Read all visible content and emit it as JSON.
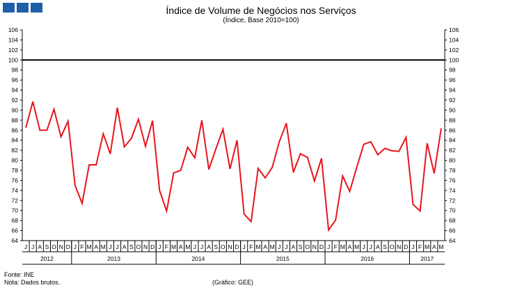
{
  "header": {
    "title": "Índice de Volume de Negócios nos Serviços",
    "subtitle": "(Índice, Base 2010=100)"
  },
  "footer": {
    "source": "Fonte: INE",
    "note": "Nota: Dados brutos.",
    "credit": "(Gráfico: GEE)"
  },
  "colors": {
    "series": "#e8141b",
    "reference": "#000000",
    "logo": "#1f5fa8"
  },
  "chart_data": {
    "type": "line",
    "title": "Índice de Volume de Negócios nos Serviços",
    "subtitle": "(Índice, Base 2010=100)",
    "ylim": [
      64,
      106
    ],
    "ytick_step": 2,
    "right_axis": true,
    "reference_line": 100,
    "month_labels": [
      "J",
      "J",
      "A",
      "S",
      "O",
      "N",
      "D",
      "J",
      "F",
      "M",
      "A",
      "M",
      "J",
      "J",
      "A",
      "S",
      "O",
      "N",
      "D",
      "J",
      "F",
      "M",
      "A",
      "M",
      "J",
      "J",
      "A",
      "S",
      "O",
      "N",
      "D",
      "J",
      "F",
      "M",
      "A",
      "M",
      "J",
      "J",
      "A",
      "S",
      "O",
      "N",
      "D",
      "J",
      "F",
      "M",
      "A",
      "M",
      "J",
      "J",
      "A",
      "S",
      "O",
      "N",
      "D",
      "J",
      "F",
      "M",
      "A",
      "M"
    ],
    "year_groups": [
      {
        "label": "2012",
        "months": 7
      },
      {
        "label": "2013",
        "months": 12
      },
      {
        "label": "2014",
        "months": 12
      },
      {
        "label": "2015",
        "months": 12
      },
      {
        "label": "2016",
        "months": 12
      },
      {
        "label": "2017",
        "months": 5
      }
    ],
    "x": [
      "2012-06",
      "2012-07",
      "2012-08",
      "2012-09",
      "2012-10",
      "2012-11",
      "2012-12",
      "2013-01",
      "2013-02",
      "2013-03",
      "2013-04",
      "2013-05",
      "2013-06",
      "2013-07",
      "2013-08",
      "2013-09",
      "2013-10",
      "2013-11",
      "2013-12",
      "2014-01",
      "2014-02",
      "2014-03",
      "2014-04",
      "2014-05",
      "2014-06",
      "2014-07",
      "2014-08",
      "2014-09",
      "2014-10",
      "2014-11",
      "2014-12",
      "2015-01",
      "2015-02",
      "2015-03",
      "2015-04",
      "2015-05",
      "2015-06",
      "2015-07",
      "2015-08",
      "2015-09",
      "2015-10",
      "2015-11",
      "2015-12",
      "2016-01",
      "2016-02",
      "2016-03",
      "2016-04",
      "2016-05",
      "2016-06",
      "2016-07",
      "2016-08",
      "2016-09",
      "2016-10",
      "2016-11",
      "2016-12",
      "2017-01",
      "2017-02",
      "2017-03",
      "2017-04",
      "2017-05"
    ],
    "series": [
      {
        "values": [
          86.5,
          91.7,
          86.0,
          86.0,
          90.2,
          84.7,
          87.8,
          75.0,
          71.4,
          79.1,
          79.1,
          85.3,
          81.3,
          90.5,
          82.7,
          84.4,
          88.2,
          82.8,
          87.9,
          74.0,
          69.9,
          77.5,
          78.0,
          82.6,
          80.5,
          88.0,
          78.2,
          82.3,
          86.2,
          78.3,
          84.0,
          69.3,
          67.8,
          78.4,
          76.5,
          78.6,
          83.7,
          87.4,
          77.6,
          81.3,
          80.6,
          75.9,
          80.4,
          66.1,
          68.1,
          76.9,
          73.8,
          78.6,
          83.2,
          83.7,
          81.1,
          82.4,
          81.9,
          81.8,
          84.6,
          71.2,
          69.9,
          83.4,
          77.4,
          86.4
        ]
      }
    ]
  }
}
